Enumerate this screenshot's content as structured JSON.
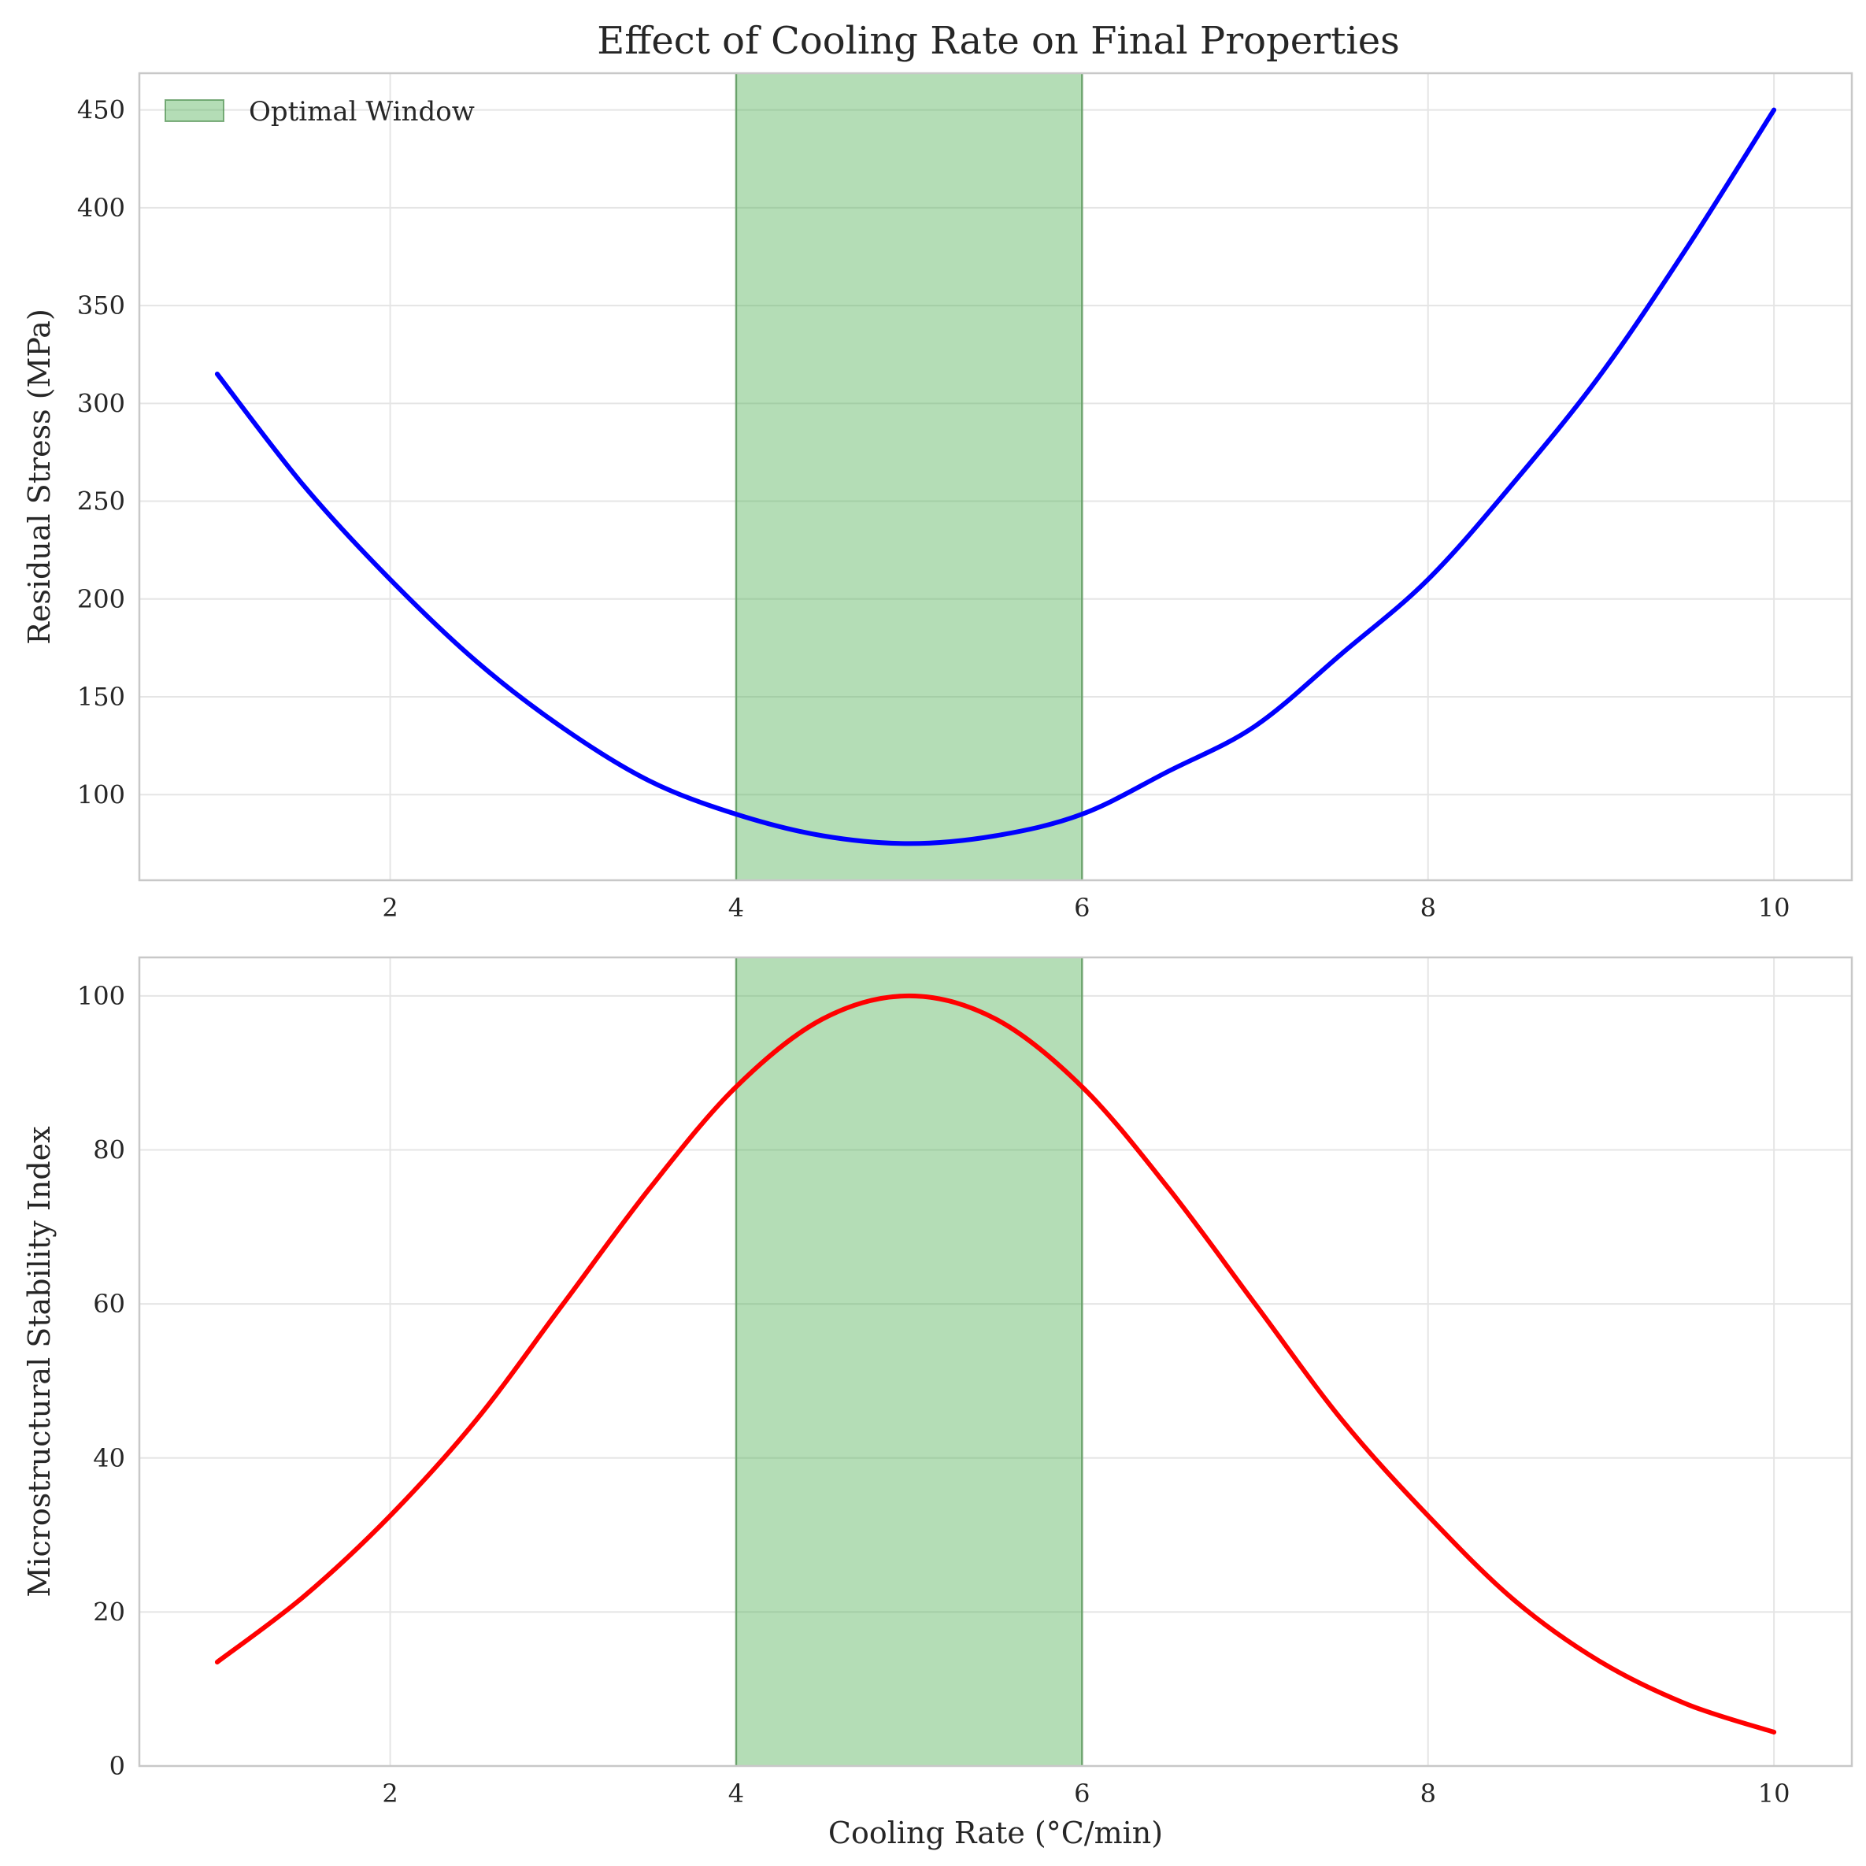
{
  "title": "Effect of Cooling Rate on Final Properties",
  "chart_data": [
    {
      "type": "line",
      "title": "Effect of Cooling Rate on Final Properties",
      "xlabel": "",
      "ylabel": "Residual Stress (MPa)",
      "xlim": [
        0.55,
        10.45
      ],
      "ylim": [
        56.25,
        468.75
      ],
      "xticks": [
        2,
        4,
        6,
        8,
        10
      ],
      "yticks": [
        100,
        150,
        200,
        250,
        300,
        350,
        400,
        450
      ],
      "grid": true,
      "legend": {
        "location": "upper-left",
        "entries": [
          "Optimal Window"
        ]
      },
      "shaded_region": {
        "x": [
          4,
          6
        ],
        "label": "Optimal Window",
        "color": "#4caf50"
      },
      "series": [
        {
          "color": "#0000ff",
          "x": [
            1.0,
            1.5,
            2.0,
            2.5,
            3.0,
            3.5,
            4.0,
            4.5,
            5.0,
            5.5,
            6.0,
            6.5,
            7.0,
            7.5,
            8.0,
            8.5,
            9.0,
            9.5,
            10.0
          ],
          "y": [
            315,
            258,
            210,
            168,
            134,
            107,
            90,
            79,
            75,
            79,
            90,
            112,
            135,
            172,
            210,
            260,
            315,
            380,
            450
          ]
        }
      ]
    },
    {
      "type": "line",
      "xlabel": "Cooling Rate (°C/min)",
      "ylabel": "Microstructural Stability Index",
      "xlim": [
        0.55,
        10.45
      ],
      "ylim": [
        0,
        105
      ],
      "xticks": [
        2,
        4,
        6,
        8,
        10
      ],
      "yticks": [
        0,
        20,
        40,
        60,
        80,
        100
      ],
      "grid": true,
      "shaded_region": {
        "x": [
          4,
          6
        ],
        "color": "#4caf50"
      },
      "series": [
        {
          "color": "#ff0000",
          "x": [
            1.0,
            1.5,
            2.0,
            2.5,
            3.0,
            3.5,
            4.0,
            4.5,
            5.0,
            5.5,
            6.0,
            6.5,
            7.0,
            7.5,
            8.0,
            8.5,
            9.0,
            9.5,
            10.0
          ],
          "y": [
            13.5,
            22,
            32.5,
            45,
            60,
            75,
            88.2,
            97,
            100,
            97,
            88.2,
            75,
            60,
            45,
            32.5,
            21.5,
            13.5,
            8,
            4.4
          ]
        }
      ]
    }
  ]
}
